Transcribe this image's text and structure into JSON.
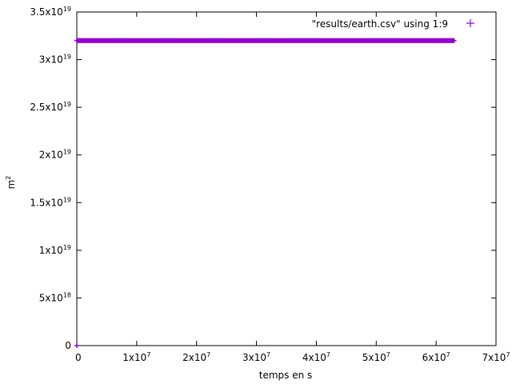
{
  "chart_data": {
    "type": "scatter",
    "xlabel": "temps en s",
    "ylabel": "m",
    "ylabel_superscript": "2",
    "xlim": [
      0,
      70000000
    ],
    "ylim": [
      0,
      35000000000000000000
    ],
    "grid": false,
    "legend_position": "top-right",
    "x_ticks": [
      {
        "value": 0,
        "label": "0",
        "sup": ""
      },
      {
        "value": 10000000,
        "label": "1x10",
        "sup": "7"
      },
      {
        "value": 20000000,
        "label": "2x10",
        "sup": "7"
      },
      {
        "value": 30000000,
        "label": "3x10",
        "sup": "7"
      },
      {
        "value": 40000000,
        "label": "4x10",
        "sup": "7"
      },
      {
        "value": 50000000,
        "label": "5x10",
        "sup": "7"
      },
      {
        "value": 60000000,
        "label": "6x10",
        "sup": "7"
      },
      {
        "value": 70000000,
        "label": "7x10",
        "sup": "7"
      }
    ],
    "y_ticks": [
      {
        "value": 0,
        "label": "0",
        "sup": ""
      },
      {
        "value": 5000000000000000000,
        "label": "5x10",
        "sup": "18"
      },
      {
        "value": 10000000000000000000,
        "label": "1x10",
        "sup": "19"
      },
      {
        "value": 15000000000000000000,
        "label": "1.5x10",
        "sup": "19"
      },
      {
        "value": 20000000000000000000,
        "label": "2x10",
        "sup": "19"
      },
      {
        "value": 25000000000000000000,
        "label": "2.5x10",
        "sup": "19"
      },
      {
        "value": 30000000000000000000,
        "label": "3x10",
        "sup": "19"
      },
      {
        "value": 35000000000000000000,
        "label": "3.5x10",
        "sup": "19"
      }
    ],
    "series": [
      {
        "name": "\"results/earth.csv\" using 1:9",
        "color": "#9400d3",
        "marker": "plus",
        "x_start": 0,
        "x_end": 63000000,
        "y_constant": 32000000000000000000,
        "initial_point": {
          "x": 0,
          "y": 0
        }
      }
    ]
  }
}
